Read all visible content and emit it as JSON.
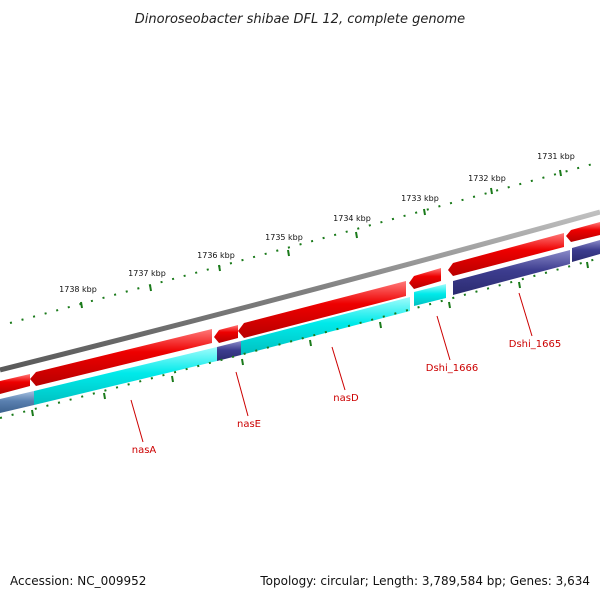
{
  "title": "Dinoroseobacter shibae DFL 12, complete genome",
  "accession": "Accession: NC_009952",
  "topology": "Topology: circular; Length: 3,789,584 bp; Genes: 3,634",
  "kbp_labels": [
    "1731 kbp",
    "1732 kbp",
    "1733 kbp",
    "1734 kbp",
    "1735 kbp",
    "1736 kbp",
    "1737 kbp",
    "1738 kbp"
  ],
  "gene_labels": [
    "nasA",
    "nasE",
    "nasD",
    "Dshi_1666",
    "Dshi_1665"
  ],
  "colors": {
    "backbone": "#808080",
    "gene_arrow": "#ee0000",
    "cds_cyan": "#00e6e6",
    "cds_navy": "#3d3d8f",
    "cds_steel": "#5a80b0",
    "tick": "#1a7a1a",
    "label": "#cc0000"
  }
}
